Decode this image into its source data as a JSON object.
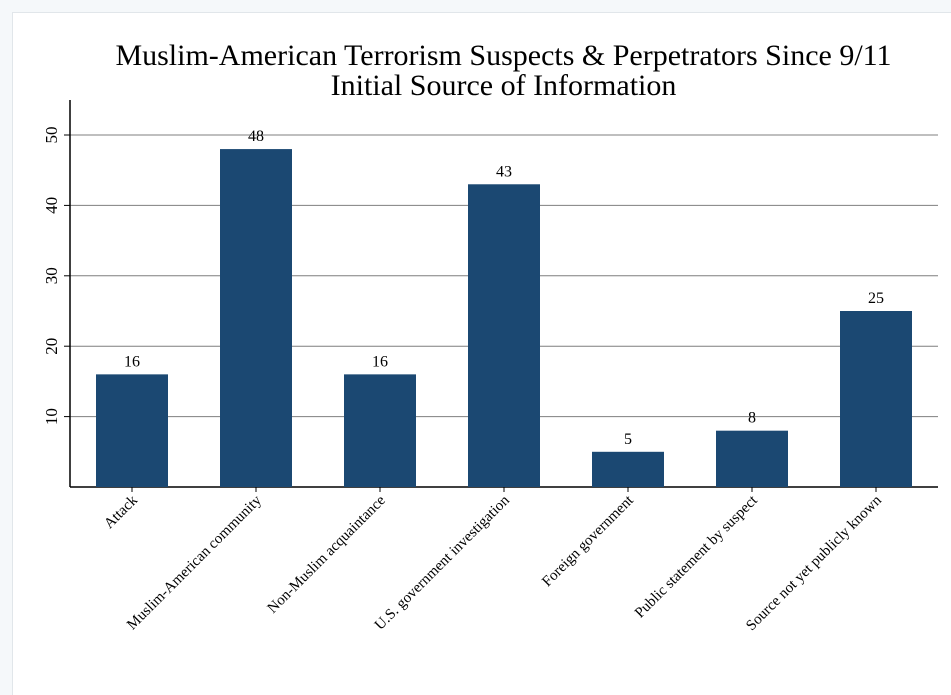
{
  "chart_data": {
    "type": "bar",
    "title": "Muslim-American Terrorism Suspects & Perpetrators Since 9/11",
    "subtitle": "Initial Source of Information",
    "categories": [
      "Attack",
      "Muslim-American community",
      "Non-Muslim acquaintance",
      "U.S. government investigation",
      "Foreign government",
      "Public statement by suspect",
      "Source not yet publicly known"
    ],
    "values": [
      16,
      48,
      16,
      43,
      5,
      8,
      25
    ],
    "ylim": [
      0,
      50
    ],
    "yticks": [
      10,
      20,
      30,
      40,
      50
    ],
    "grid": true,
    "data_labels": true,
    "bar_color": "#1b4872",
    "xlabel": "",
    "ylabel": ""
  }
}
